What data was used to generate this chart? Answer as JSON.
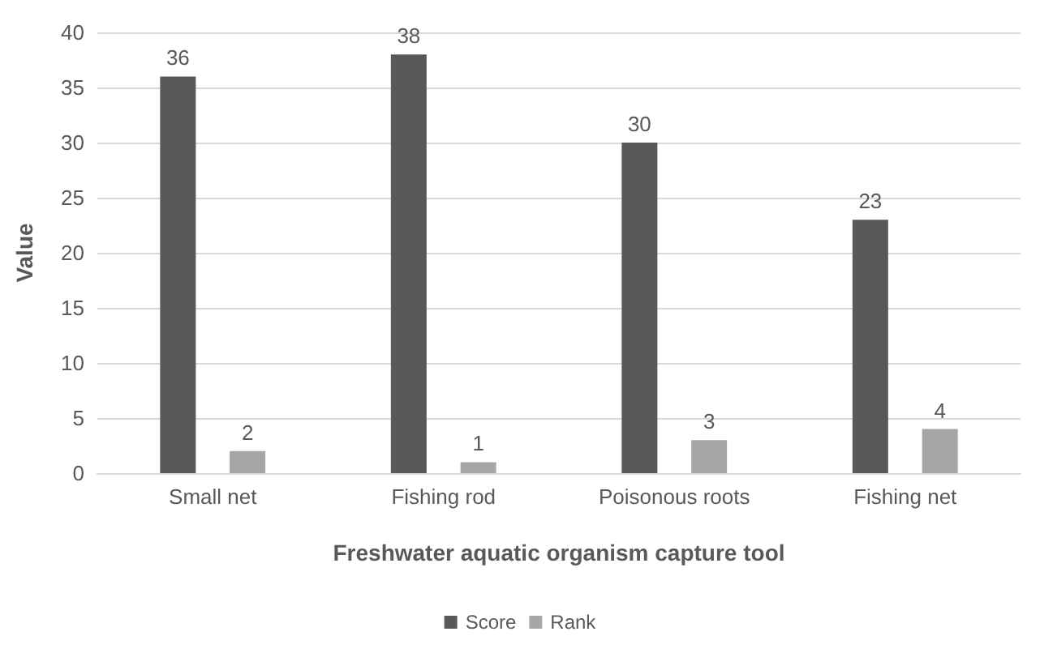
{
  "chart_data": {
    "type": "bar",
    "xlabel": "Freshwater aquatic organism capture tool",
    "ylabel": "Value",
    "categories": [
      "Small net",
      "Fishing rod",
      "Poisonous roots",
      "Fishing net"
    ],
    "series": [
      {
        "name": "Score",
        "color": "#595959",
        "values": [
          36,
          38,
          30,
          23
        ]
      },
      {
        "name": "Rank",
        "color": "#a6a6a6",
        "values": [
          2,
          1,
          3,
          4
        ]
      }
    ],
    "ylim": [
      0,
      40
    ],
    "yticks": [
      0,
      5,
      10,
      15,
      20,
      25,
      30,
      35,
      40
    ],
    "grid": "y",
    "legend": "bottom",
    "data_labels": true
  }
}
